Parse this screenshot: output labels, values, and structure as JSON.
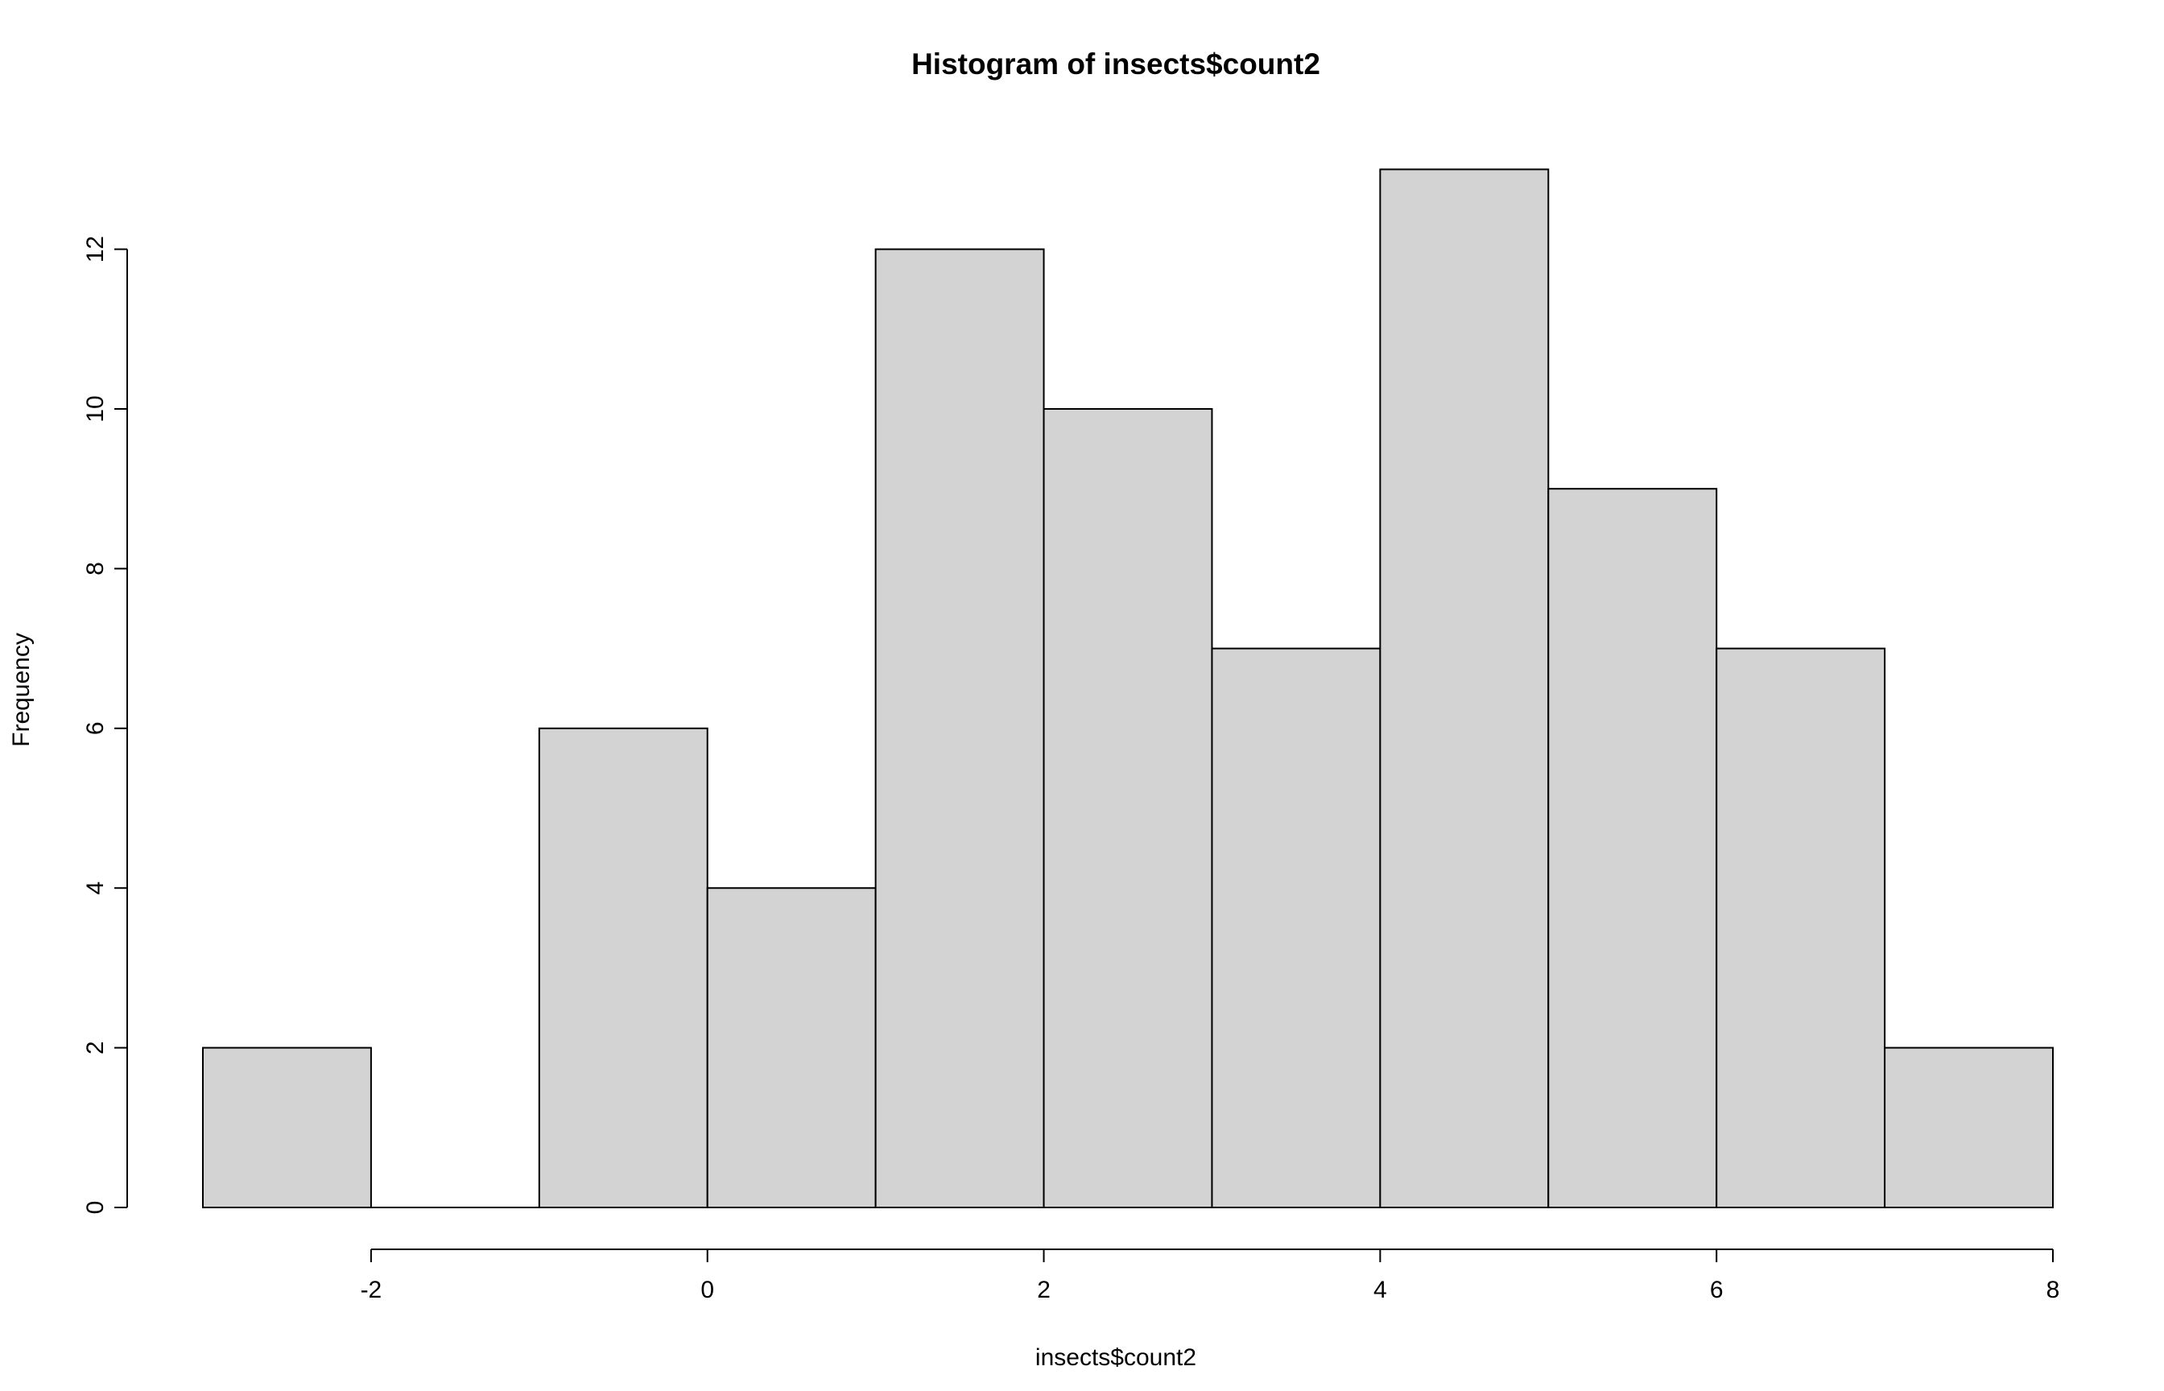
{
  "chart_data": {
    "type": "bar",
    "title": "Histogram of insects$count2",
    "xlabel": "insects$count2",
    "ylabel": "Frequency",
    "bins": [
      {
        "start": -3,
        "end": -2,
        "count": 2
      },
      {
        "start": -2,
        "end": -1,
        "count": 0
      },
      {
        "start": -1,
        "end": 0,
        "count": 6
      },
      {
        "start": 0,
        "end": 1,
        "count": 4
      },
      {
        "start": 1,
        "end": 2,
        "count": 12
      },
      {
        "start": 2,
        "end": 3,
        "count": 10
      },
      {
        "start": 3,
        "end": 4,
        "count": 7
      },
      {
        "start": 4,
        "end": 5,
        "count": 13
      },
      {
        "start": 5,
        "end": 6,
        "count": 9
      },
      {
        "start": 6,
        "end": 7,
        "count": 7
      },
      {
        "start": 7,
        "end": 8,
        "count": 2
      }
    ],
    "xlim": [
      -3,
      8
    ],
    "ylim": [
      0,
      13
    ],
    "x_ticks": [
      -2,
      0,
      2,
      4,
      6,
      8
    ],
    "y_ticks": [
      0,
      2,
      4,
      6,
      8,
      10,
      12
    ],
    "bar_fill": "#d3d3d3",
    "bar_stroke": "#000000",
    "grid": false,
    "legend": "none"
  }
}
